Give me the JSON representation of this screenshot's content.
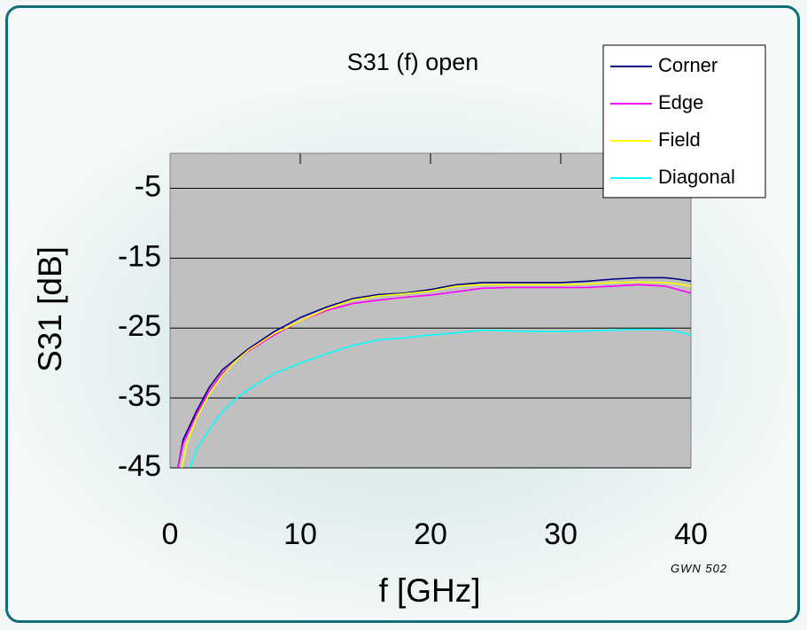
{
  "chart_data": {
    "type": "line",
    "title": "S31 (f) open",
    "xlabel": "f [GHz]",
    "ylabel": "S31 [dB]",
    "xlim": [
      0,
      40
    ],
    "ylim": [
      -45,
      0
    ],
    "xticks": [
      "0",
      "10",
      "20",
      "30",
      "40"
    ],
    "yticks": [
      "-5",
      "-15",
      "-25",
      "-35",
      "-45"
    ],
    "grid": "horizontal",
    "plot_background": "#c0c0c0",
    "legend_position": "top-right",
    "series": [
      {
        "name": "Corner",
        "color": "#000080",
        "x": [
          0.6,
          1,
          2,
          3,
          4,
          5,
          6,
          8,
          10,
          12,
          14,
          16,
          18,
          20,
          22,
          24,
          26,
          28,
          30,
          32,
          34,
          36,
          38,
          39,
          40
        ],
        "y": [
          -45,
          -41,
          -37,
          -33.5,
          -31,
          -29.5,
          -28,
          -25.5,
          -23.5,
          -22,
          -20.8,
          -20.2,
          -20,
          -19.5,
          -18.8,
          -18.5,
          -18.5,
          -18.5,
          -18.5,
          -18.3,
          -18,
          -17.8,
          -17.8,
          -18,
          -18.3
        ]
      },
      {
        "name": "Edge",
        "color": "#ff00ff",
        "x": [
          0.6,
          1,
          2,
          3,
          4,
          5,
          6,
          8,
          10,
          12,
          14,
          16,
          18,
          20,
          22,
          24,
          26,
          28,
          30,
          32,
          34,
          36,
          38,
          39,
          40
        ],
        "y": [
          -45,
          -41.5,
          -37.5,
          -34,
          -31.5,
          -29.8,
          -28.3,
          -26,
          -24,
          -22.5,
          -21.5,
          -21,
          -20.6,
          -20.3,
          -19.8,
          -19.3,
          -19.2,
          -19.2,
          -19.2,
          -19.2,
          -19,
          -18.8,
          -19,
          -19.5,
          -20
        ]
      },
      {
        "name": "Field",
        "color": "#ffff00",
        "x": [
          0.9,
          1.3,
          2,
          3,
          4,
          5,
          6,
          8,
          10,
          12,
          14,
          16,
          18,
          20,
          22,
          24,
          26,
          28,
          30,
          32,
          34,
          36,
          38,
          39,
          40
        ],
        "y": [
          -45,
          -41.5,
          -38,
          -34.5,
          -31.8,
          -29.8,
          -28.2,
          -25.8,
          -24,
          -22.3,
          -21,
          -20.4,
          -20.1,
          -19.7,
          -19,
          -18.8,
          -18.8,
          -18.8,
          -18.8,
          -18.7,
          -18.5,
          -18.4,
          -18.5,
          -18.7,
          -19
        ]
      },
      {
        "name": "Diagonal",
        "color": "#00ffff",
        "x": [
          1.5,
          2,
          3,
          4,
          5,
          6,
          8,
          10,
          12,
          14,
          16,
          18,
          20,
          22,
          24,
          26,
          28,
          30,
          32,
          34,
          36,
          38,
          39,
          40
        ],
        "y": [
          -45,
          -42.5,
          -39.5,
          -37,
          -35.2,
          -33.8,
          -31.5,
          -30,
          -28.7,
          -27.5,
          -26.7,
          -26.4,
          -26,
          -25.7,
          -25.3,
          -25.4,
          -25.5,
          -25.5,
          -25.4,
          -25.3,
          -25.2,
          -25.2,
          -25.5,
          -26
        ]
      }
    ],
    "note": "GWN 502"
  }
}
